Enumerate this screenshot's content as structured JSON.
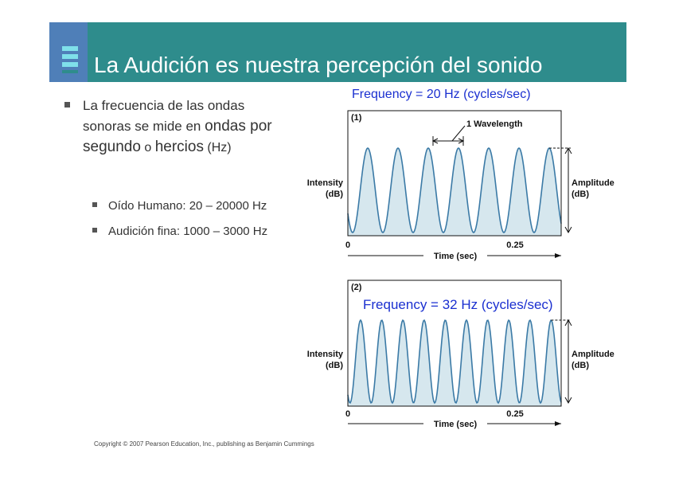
{
  "header": {
    "title": "La Audición es nuestra percepción del sonido"
  },
  "bullet": {
    "lines": [
      [
        "La frecuencia de las ondas"
      ],
      [
        "sonoras se mide en ",
        "ondas por"
      ],
      [
        "segundo",
        " o ",
        "hercios",
        " (Hz)"
      ]
    ]
  },
  "sub_bullets": [
    "Oído Humano: 20 – 20000 Hz",
    "Audición fina: 1000 – 3000 Hz"
  ],
  "figures": [
    {
      "label": "(1)",
      "frequency": "Frequency = 20 Hz (cycles/sec)",
      "wavelength": "1 Wavelength",
      "y_label": [
        "Intensity",
        "(dB)"
      ],
      "amplitude": [
        "Amplitude",
        "(dB)"
      ],
      "x_ticks": [
        "0",
        "0.25"
      ],
      "x_label": "Time (sec)"
    },
    {
      "label": "(2)",
      "frequency": "Frequency = 32 Hz (cycles/sec)",
      "y_label": [
        "Intensity",
        "(dB)"
      ],
      "amplitude": [
        "Amplitude",
        "(dB)"
      ],
      "x_ticks": [
        "0",
        "0.25"
      ],
      "x_label": "Time (sec)"
    }
  ],
  "footer": "Copyright © 2007 Pearson Education, Inc., publishing as Benjamin Cummings"
}
